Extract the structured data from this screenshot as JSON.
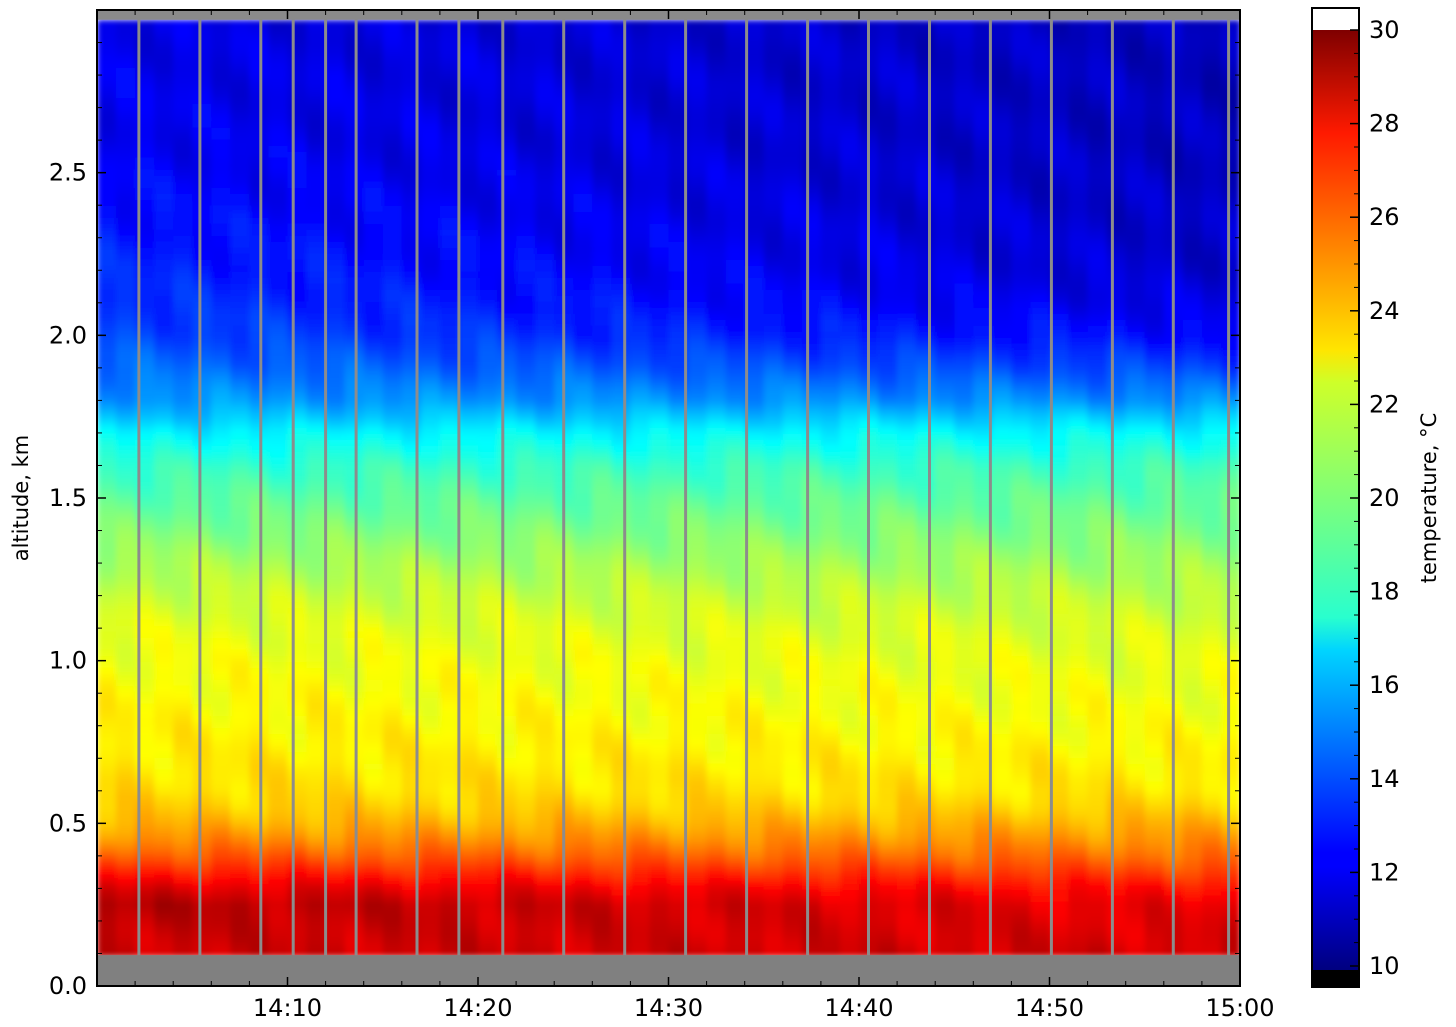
{
  "chart_data": {
    "type": "heatmap",
    "title": "",
    "xlabel": "",
    "ylabel": "altitude, km",
    "colorbar_label": "temperature, °C",
    "colormap": "jet",
    "xlim": [
      "14:00",
      "15:00"
    ],
    "ylim": [
      0.0,
      3.0
    ],
    "clim": [
      10,
      30
    ],
    "x_ticks": [
      "14:10",
      "14:20",
      "14:30",
      "14:40",
      "14:50",
      "15:00"
    ],
    "y_ticks": [
      "0.0",
      "0.5",
      "1.0",
      "1.5",
      "2.0",
      "2.5"
    ],
    "colorbar_ticks": [
      "10",
      "12",
      "14",
      "16",
      "18",
      "20",
      "22",
      "24",
      "26",
      "28",
      "30"
    ],
    "profile": {
      "altitude_km": [
        0.1,
        0.15,
        0.2,
        0.25,
        0.3,
        0.35,
        0.4,
        0.45,
        0.5,
        0.55,
        0.6,
        0.7,
        0.8,
        0.9,
        1.0,
        1.1,
        1.2,
        1.3,
        1.4,
        1.5,
        1.6,
        1.7,
        1.75,
        1.8,
        1.9,
        2.0,
        2.1,
        2.2,
        2.4,
        2.6,
        2.8,
        3.0
      ],
      "temperature_start_c": [
        28.5,
        28.6,
        28.8,
        29.0,
        28.2,
        27.0,
        25.8,
        24.8,
        24.0,
        23.5,
        23.2,
        22.9,
        22.7,
        22.5,
        22.3,
        22.0,
        21.5,
        20.8,
        20.0,
        19.3,
        18.5,
        17.3,
        16.3,
        15.5,
        14.6,
        13.9,
        13.5,
        13.2,
        12.7,
        12.3,
        12.2,
        12.0
      ],
      "temperature_end_c": [
        28.4,
        28.2,
        28.0,
        27.8,
        27.2,
        26.2,
        25.3,
        24.6,
        24.0,
        23.4,
        23.0,
        22.7,
        22.4,
        22.2,
        22.0,
        21.7,
        21.2,
        20.6,
        20.0,
        19.4,
        18.7,
        17.5,
        16.5,
        15.3,
        13.8,
        12.6,
        11.9,
        11.5,
        11.3,
        11.2,
        11.2,
        11.2
      ]
    },
    "gaps_minutes": [
      2.2,
      5.4,
      8.6,
      10.3,
      12.0,
      13.6,
      16.8,
      19.0,
      21.3,
      24.5,
      27.7,
      30.9,
      34.1,
      37.3,
      40.5,
      43.7,
      46.9,
      50.1,
      53.3,
      56.5,
      59.4
    ]
  }
}
